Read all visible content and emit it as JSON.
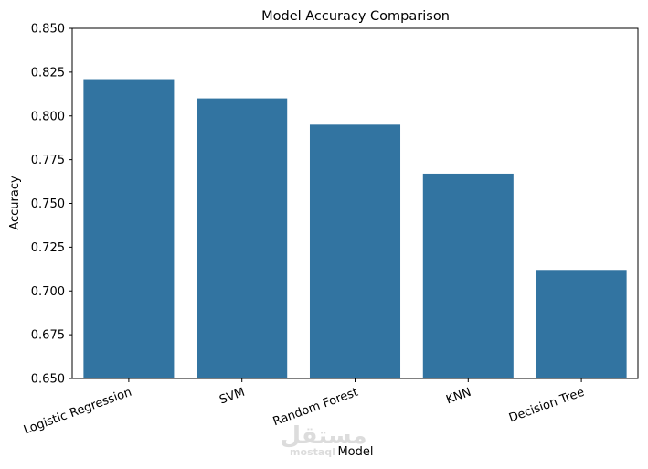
{
  "chart_data": {
    "type": "bar",
    "title": "Model Accuracy Comparison",
    "xlabel": "Model",
    "ylabel": "Accuracy",
    "categories": [
      "Logistic Regression",
      "SVM",
      "Random Forest",
      "KNN",
      "Decision Tree"
    ],
    "values": [
      0.821,
      0.81,
      0.795,
      0.767,
      0.712
    ],
    "ylim": [
      0.65,
      0.85
    ],
    "yticks": [
      0.65,
      0.675,
      0.7,
      0.725,
      0.75,
      0.775,
      0.8,
      0.825,
      0.85
    ],
    "ytick_labels": [
      "0.650",
      "0.675",
      "0.700",
      "0.725",
      "0.750",
      "0.775",
      "0.800",
      "0.825",
      "0.850"
    ],
    "xtick_rotation_deg": -20,
    "grid": false,
    "legend": "none",
    "bar_color": "#3274a1"
  },
  "watermark": {
    "logo_text": "مستقل",
    "caption": "mostaql"
  }
}
